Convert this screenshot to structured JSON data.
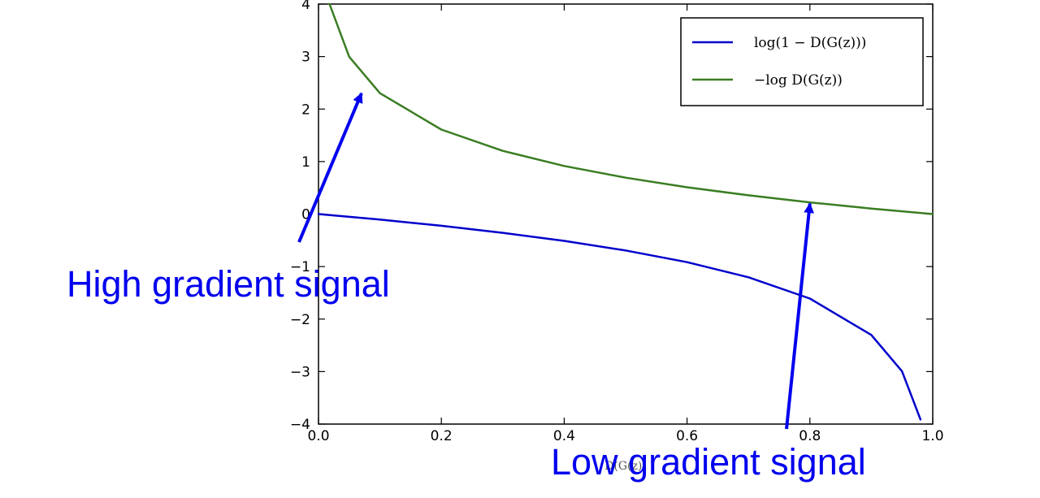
{
  "chart_data": {
    "type": "line",
    "xlabel": "D(G(z))",
    "ylabel": "",
    "xlim": [
      0.0,
      1.0
    ],
    "ylim": [
      -4,
      4
    ],
    "xticks": [
      "0.0",
      "0.2",
      "0.4",
      "0.6",
      "0.8",
      "1.0"
    ],
    "yticks": [
      "4",
      "3",
      "2",
      "1",
      "0",
      "−1",
      "−2",
      "−3",
      "−4"
    ],
    "grid": false,
    "legend_position": "top-right",
    "series": [
      {
        "name": "log(1 − D(G(z)))",
        "color": "#0000cc",
        "x": [
          0.0,
          0.1,
          0.2,
          0.3,
          0.4,
          0.5,
          0.6,
          0.7,
          0.8,
          0.9,
          0.95,
          0.98
        ],
        "y": [
          0.0,
          -0.105,
          -0.223,
          -0.357,
          -0.511,
          -0.693,
          -0.916,
          -1.204,
          -1.609,
          -2.303,
          -2.996,
          -3.912
        ]
      },
      {
        "name": "−log D(G(z))",
        "color": "#3a7d22",
        "x": [
          0.018,
          0.05,
          0.1,
          0.2,
          0.3,
          0.4,
          0.5,
          0.6,
          0.7,
          0.8,
          0.9,
          1.0
        ],
        "y": [
          4.0,
          2.996,
          2.303,
          1.609,
          1.204,
          0.916,
          0.693,
          0.511,
          0.357,
          0.223,
          0.105,
          0.0
        ]
      }
    ],
    "annotations": [
      {
        "text": "High gradient signal",
        "color": "#0000ee",
        "points_to": [
          0.07,
          2.3
        ]
      },
      {
        "text": "Low gradient signal",
        "color": "#0000ee",
        "points_to": [
          0.8,
          0.2
        ]
      }
    ]
  }
}
